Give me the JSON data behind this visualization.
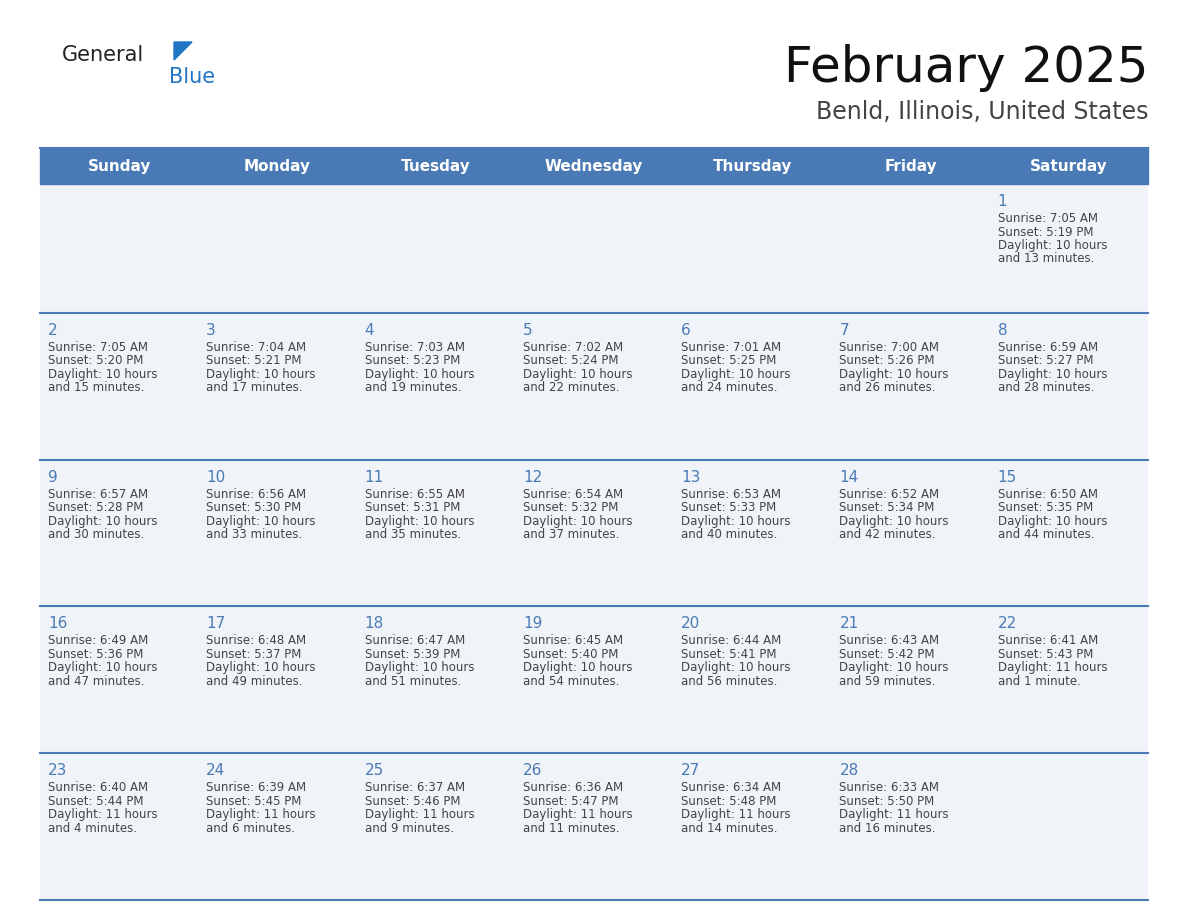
{
  "title": "February 2025",
  "subtitle": "Benld, Illinois, United States",
  "header_bg": "#4a7ab5",
  "header_text": "#ffffff",
  "day_names": [
    "Sunday",
    "Monday",
    "Tuesday",
    "Wednesday",
    "Thursday",
    "Friday",
    "Saturday"
  ],
  "cell_bg_light": "#f0f4f8",
  "cell_bg_white": "#ffffff",
  "border_color": "#4a7ab5",
  "day_num_color": "#4a7ab5",
  "text_color": "#444444",
  "logo_general_color": "#222222",
  "logo_blue_color": "#2176c4",
  "days": [
    {
      "date": 1,
      "col": 6,
      "row": 0,
      "sunrise": "7:05 AM",
      "sunset": "5:19 PM",
      "daylight": "10 hours and 13 minutes."
    },
    {
      "date": 2,
      "col": 0,
      "row": 1,
      "sunrise": "7:05 AM",
      "sunset": "5:20 PM",
      "daylight": "10 hours and 15 minutes."
    },
    {
      "date": 3,
      "col": 1,
      "row": 1,
      "sunrise": "7:04 AM",
      "sunset": "5:21 PM",
      "daylight": "10 hours and 17 minutes."
    },
    {
      "date": 4,
      "col": 2,
      "row": 1,
      "sunrise": "7:03 AM",
      "sunset": "5:23 PM",
      "daylight": "10 hours and 19 minutes."
    },
    {
      "date": 5,
      "col": 3,
      "row": 1,
      "sunrise": "7:02 AM",
      "sunset": "5:24 PM",
      "daylight": "10 hours and 22 minutes."
    },
    {
      "date": 6,
      "col": 4,
      "row": 1,
      "sunrise": "7:01 AM",
      "sunset": "5:25 PM",
      "daylight": "10 hours and 24 minutes."
    },
    {
      "date": 7,
      "col": 5,
      "row": 1,
      "sunrise": "7:00 AM",
      "sunset": "5:26 PM",
      "daylight": "10 hours and 26 minutes."
    },
    {
      "date": 8,
      "col": 6,
      "row": 1,
      "sunrise": "6:59 AM",
      "sunset": "5:27 PM",
      "daylight": "10 hours and 28 minutes."
    },
    {
      "date": 9,
      "col": 0,
      "row": 2,
      "sunrise": "6:57 AM",
      "sunset": "5:28 PM",
      "daylight": "10 hours and 30 minutes."
    },
    {
      "date": 10,
      "col": 1,
      "row": 2,
      "sunrise": "6:56 AM",
      "sunset": "5:30 PM",
      "daylight": "10 hours and 33 minutes."
    },
    {
      "date": 11,
      "col": 2,
      "row": 2,
      "sunrise": "6:55 AM",
      "sunset": "5:31 PM",
      "daylight": "10 hours and 35 minutes."
    },
    {
      "date": 12,
      "col": 3,
      "row": 2,
      "sunrise": "6:54 AM",
      "sunset": "5:32 PM",
      "daylight": "10 hours and 37 minutes."
    },
    {
      "date": 13,
      "col": 4,
      "row": 2,
      "sunrise": "6:53 AM",
      "sunset": "5:33 PM",
      "daylight": "10 hours and 40 minutes."
    },
    {
      "date": 14,
      "col": 5,
      "row": 2,
      "sunrise": "6:52 AM",
      "sunset": "5:34 PM",
      "daylight": "10 hours and 42 minutes."
    },
    {
      "date": 15,
      "col": 6,
      "row": 2,
      "sunrise": "6:50 AM",
      "sunset": "5:35 PM",
      "daylight": "10 hours and 44 minutes."
    },
    {
      "date": 16,
      "col": 0,
      "row": 3,
      "sunrise": "6:49 AM",
      "sunset": "5:36 PM",
      "daylight": "10 hours and 47 minutes."
    },
    {
      "date": 17,
      "col": 1,
      "row": 3,
      "sunrise": "6:48 AM",
      "sunset": "5:37 PM",
      "daylight": "10 hours and 49 minutes."
    },
    {
      "date": 18,
      "col": 2,
      "row": 3,
      "sunrise": "6:47 AM",
      "sunset": "5:39 PM",
      "daylight": "10 hours and 51 minutes."
    },
    {
      "date": 19,
      "col": 3,
      "row": 3,
      "sunrise": "6:45 AM",
      "sunset": "5:40 PM",
      "daylight": "10 hours and 54 minutes."
    },
    {
      "date": 20,
      "col": 4,
      "row": 3,
      "sunrise": "6:44 AM",
      "sunset": "5:41 PM",
      "daylight": "10 hours and 56 minutes."
    },
    {
      "date": 21,
      "col": 5,
      "row": 3,
      "sunrise": "6:43 AM",
      "sunset": "5:42 PM",
      "daylight": "10 hours and 59 minutes."
    },
    {
      "date": 22,
      "col": 6,
      "row": 3,
      "sunrise": "6:41 AM",
      "sunset": "5:43 PM",
      "daylight": "11 hours and 1 minute."
    },
    {
      "date": 23,
      "col": 0,
      "row": 4,
      "sunrise": "6:40 AM",
      "sunset": "5:44 PM",
      "daylight": "11 hours and 4 minutes."
    },
    {
      "date": 24,
      "col": 1,
      "row": 4,
      "sunrise": "6:39 AM",
      "sunset": "5:45 PM",
      "daylight": "11 hours and 6 minutes."
    },
    {
      "date": 25,
      "col": 2,
      "row": 4,
      "sunrise": "6:37 AM",
      "sunset": "5:46 PM",
      "daylight": "11 hours and 9 minutes."
    },
    {
      "date": 26,
      "col": 3,
      "row": 4,
      "sunrise": "6:36 AM",
      "sunset": "5:47 PM",
      "daylight": "11 hours and 11 minutes."
    },
    {
      "date": 27,
      "col": 4,
      "row": 4,
      "sunrise": "6:34 AM",
      "sunset": "5:48 PM",
      "daylight": "11 hours and 14 minutes."
    },
    {
      "date": 28,
      "col": 5,
      "row": 4,
      "sunrise": "6:33 AM",
      "sunset": "5:50 PM",
      "daylight": "11 hours and 16 minutes."
    }
  ]
}
